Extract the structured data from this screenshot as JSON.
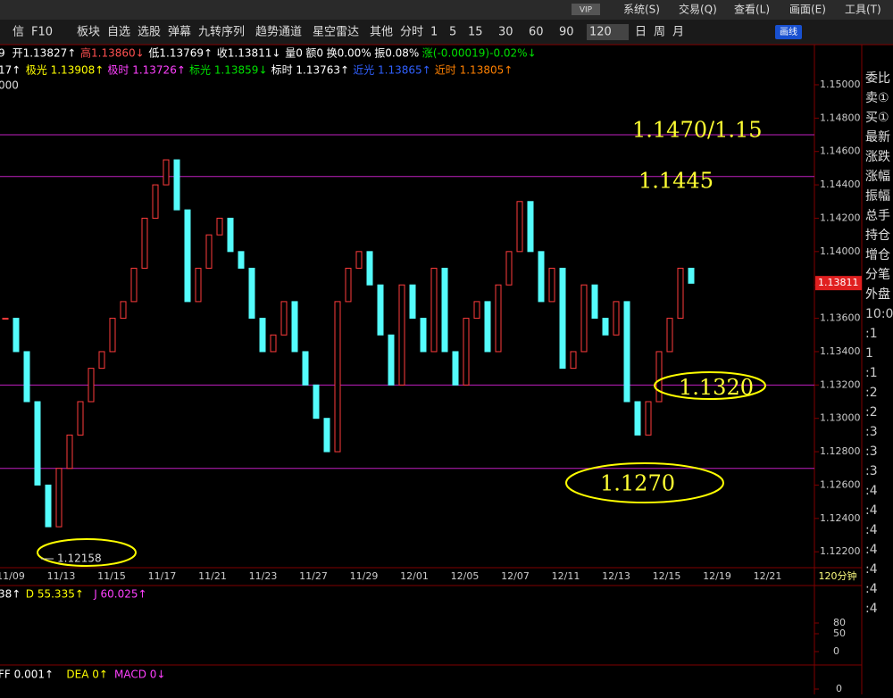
{
  "menu": {
    "vip": "VIP",
    "items": [
      "系统(S)",
      "交易(Q)",
      "查看(L)",
      "画面(E)",
      "工具(T)"
    ]
  },
  "toolbar": {
    "items": [
      "信",
      "F10",
      "板块",
      "自选",
      "选股",
      "弹幕",
      "九转序列",
      "趋势通道",
      "星空雷达",
      "其他",
      "分时",
      "1",
      "5",
      "15",
      "30",
      "60",
      "90",
      "120",
      "日",
      "周",
      "月"
    ],
    "active": "120",
    "draw_button": "画线"
  },
  "info": {
    "line1": [
      {
        "text": "9",
        "color": "#ffffff"
      },
      {
        "text": "开1.13827↑",
        "color": "#ffffff"
      },
      {
        "text": "高1.13860↓",
        "color": "#ff5050"
      },
      {
        "text": "低1.13769↑",
        "color": "#ffffff"
      },
      {
        "text": "收1.13811↓",
        "color": "#ffffff"
      },
      {
        "text": "量0",
        "color": "#ffffff"
      },
      {
        "text": "额0",
        "color": "#ffffff"
      },
      {
        "text": "换0.00%",
        "color": "#ffffff"
      },
      {
        "text": "振0.08%",
        "color": "#ffffff"
      },
      {
        "text": "涨(-0.00019)-0.02%↓",
        "color": "#00e000"
      }
    ],
    "line2": [
      {
        "text": "17↑",
        "color": "#ffffff"
      },
      {
        "text": "极光 1.13908↑",
        "color": "#ffff00"
      },
      {
        "text": "极时 1.13726↑",
        "color": "#ff40ff"
      },
      {
        "text": "标光 1.13859↓",
        "color": "#00e000"
      },
      {
        "text": "标时 1.13763↑",
        "color": "#ffffff"
      },
      {
        "text": "近光 1.13865↑",
        "color": "#3060ff"
      },
      {
        "text": "近时 1.13805↑",
        "color": "#ff8000"
      }
    ],
    "line3": "000"
  },
  "chart_data": {
    "type": "candlestick",
    "period": "120分钟",
    "closes": [
      1.136,
      1.134,
      1.131,
      1.126,
      1.1235,
      1.127,
      1.129,
      1.131,
      1.133,
      1.134,
      1.136,
      1.137,
      1.139,
      1.142,
      1.144,
      1.1455,
      1.1425,
      1.137,
      1.139,
      1.141,
      1.142,
      1.14,
      1.139,
      1.136,
      1.134,
      1.135,
      1.137,
      1.134,
      1.132,
      1.13,
      1.128,
      1.137,
      1.139,
      1.14,
      1.138,
      1.135,
      1.132,
      1.138,
      1.136,
      1.134,
      1.139,
      1.134,
      1.132,
      1.136,
      1.137,
      1.134,
      1.138,
      1.14,
      1.143,
      1.14,
      1.137,
      1.139,
      1.133,
      1.134,
      1.138,
      1.136,
      1.135,
      1.137,
      1.131,
      1.129,
      1.131,
      1.134,
      1.136,
      1.139,
      1.1381
    ],
    "up_color": "#ff3c3c",
    "down_color": "#54fcfc",
    "xticks": [
      "11/09",
      "11/13",
      "11/15",
      "11/17",
      "11/21",
      "11/23",
      "11/27",
      "11/29",
      "12/01",
      "12/05",
      "12/07",
      "12/11",
      "12/13",
      "12/15",
      "12/19",
      "12/21"
    ],
    "ylim": [
      1.1211,
      1.1523
    ],
    "yticks": [
      {
        "value": 1.15,
        "label": "1.15000"
      },
      {
        "value": 1.148,
        "label": "1.14800"
      },
      {
        "value": 1.146,
        "label": "1.14600"
      },
      {
        "value": 1.144,
        "label": "1.14400"
      },
      {
        "value": 1.142,
        "label": "1.14200"
      },
      {
        "value": 1.14,
        "label": "1.14000"
      },
      {
        "value": 1.138,
        "label": "1.13800"
      },
      {
        "value": 1.136,
        "label": "1.13600"
      },
      {
        "value": 1.134,
        "label": "1.13400"
      },
      {
        "value": 1.132,
        "label": "1.13200"
      },
      {
        "value": 1.13,
        "label": "1.13000"
      },
      {
        "value": 1.128,
        "label": "1.12800"
      },
      {
        "value": 1.126,
        "label": "1.12600"
      },
      {
        "value": 1.124,
        "label": "1.12400"
      },
      {
        "value": 1.122,
        "label": "1.12200"
      }
    ],
    "hlines": [
      1.147,
      1.1445,
      1.132,
      1.127
    ],
    "annotations": [
      "1.1470/1.15",
      "1.1445",
      "1.1320",
      "1.1270"
    ],
    "low_label": {
      "value": 1.12158,
      "label": "1.12158"
    },
    "last_price": {
      "value": 1.13811,
      "label": "1.13811"
    }
  },
  "kdj": {
    "labels": [
      {
        "text": "38↑",
        "color": "#ffffff"
      },
      {
        "text": "D 55.335↑",
        "color": "#ffff00"
      },
      {
        "text": "J 60.025↑",
        "color": "#ff40ff"
      }
    ],
    "ylim": [
      -25,
      175
    ],
    "yticks": [
      80,
      50,
      0
    ]
  },
  "macd": {
    "labels": [
      {
        "text": "FF 0.001↑",
        "color": "#ffffff"
      },
      {
        "text": "DEA 0↑",
        "color": "#ffff00"
      },
      {
        "text": "MACD 0↓",
        "color": "#ff40ff"
      }
    ],
    "yticks": [
      0
    ]
  },
  "side_panel": [
    "委比",
    "卖①",
    "买①",
    "最新",
    "涨跌",
    "涨幅",
    "振幅",
    "总手",
    "持仓",
    "增仓",
    "分笔",
    "外盘",
    "10:0",
    ":1",
    "1",
    ":1",
    ":2",
    ":2",
    ":3",
    ":3",
    ":3",
    ":4",
    ":4",
    ":4",
    ":4",
    ":4",
    ":4",
    ":4"
  ]
}
